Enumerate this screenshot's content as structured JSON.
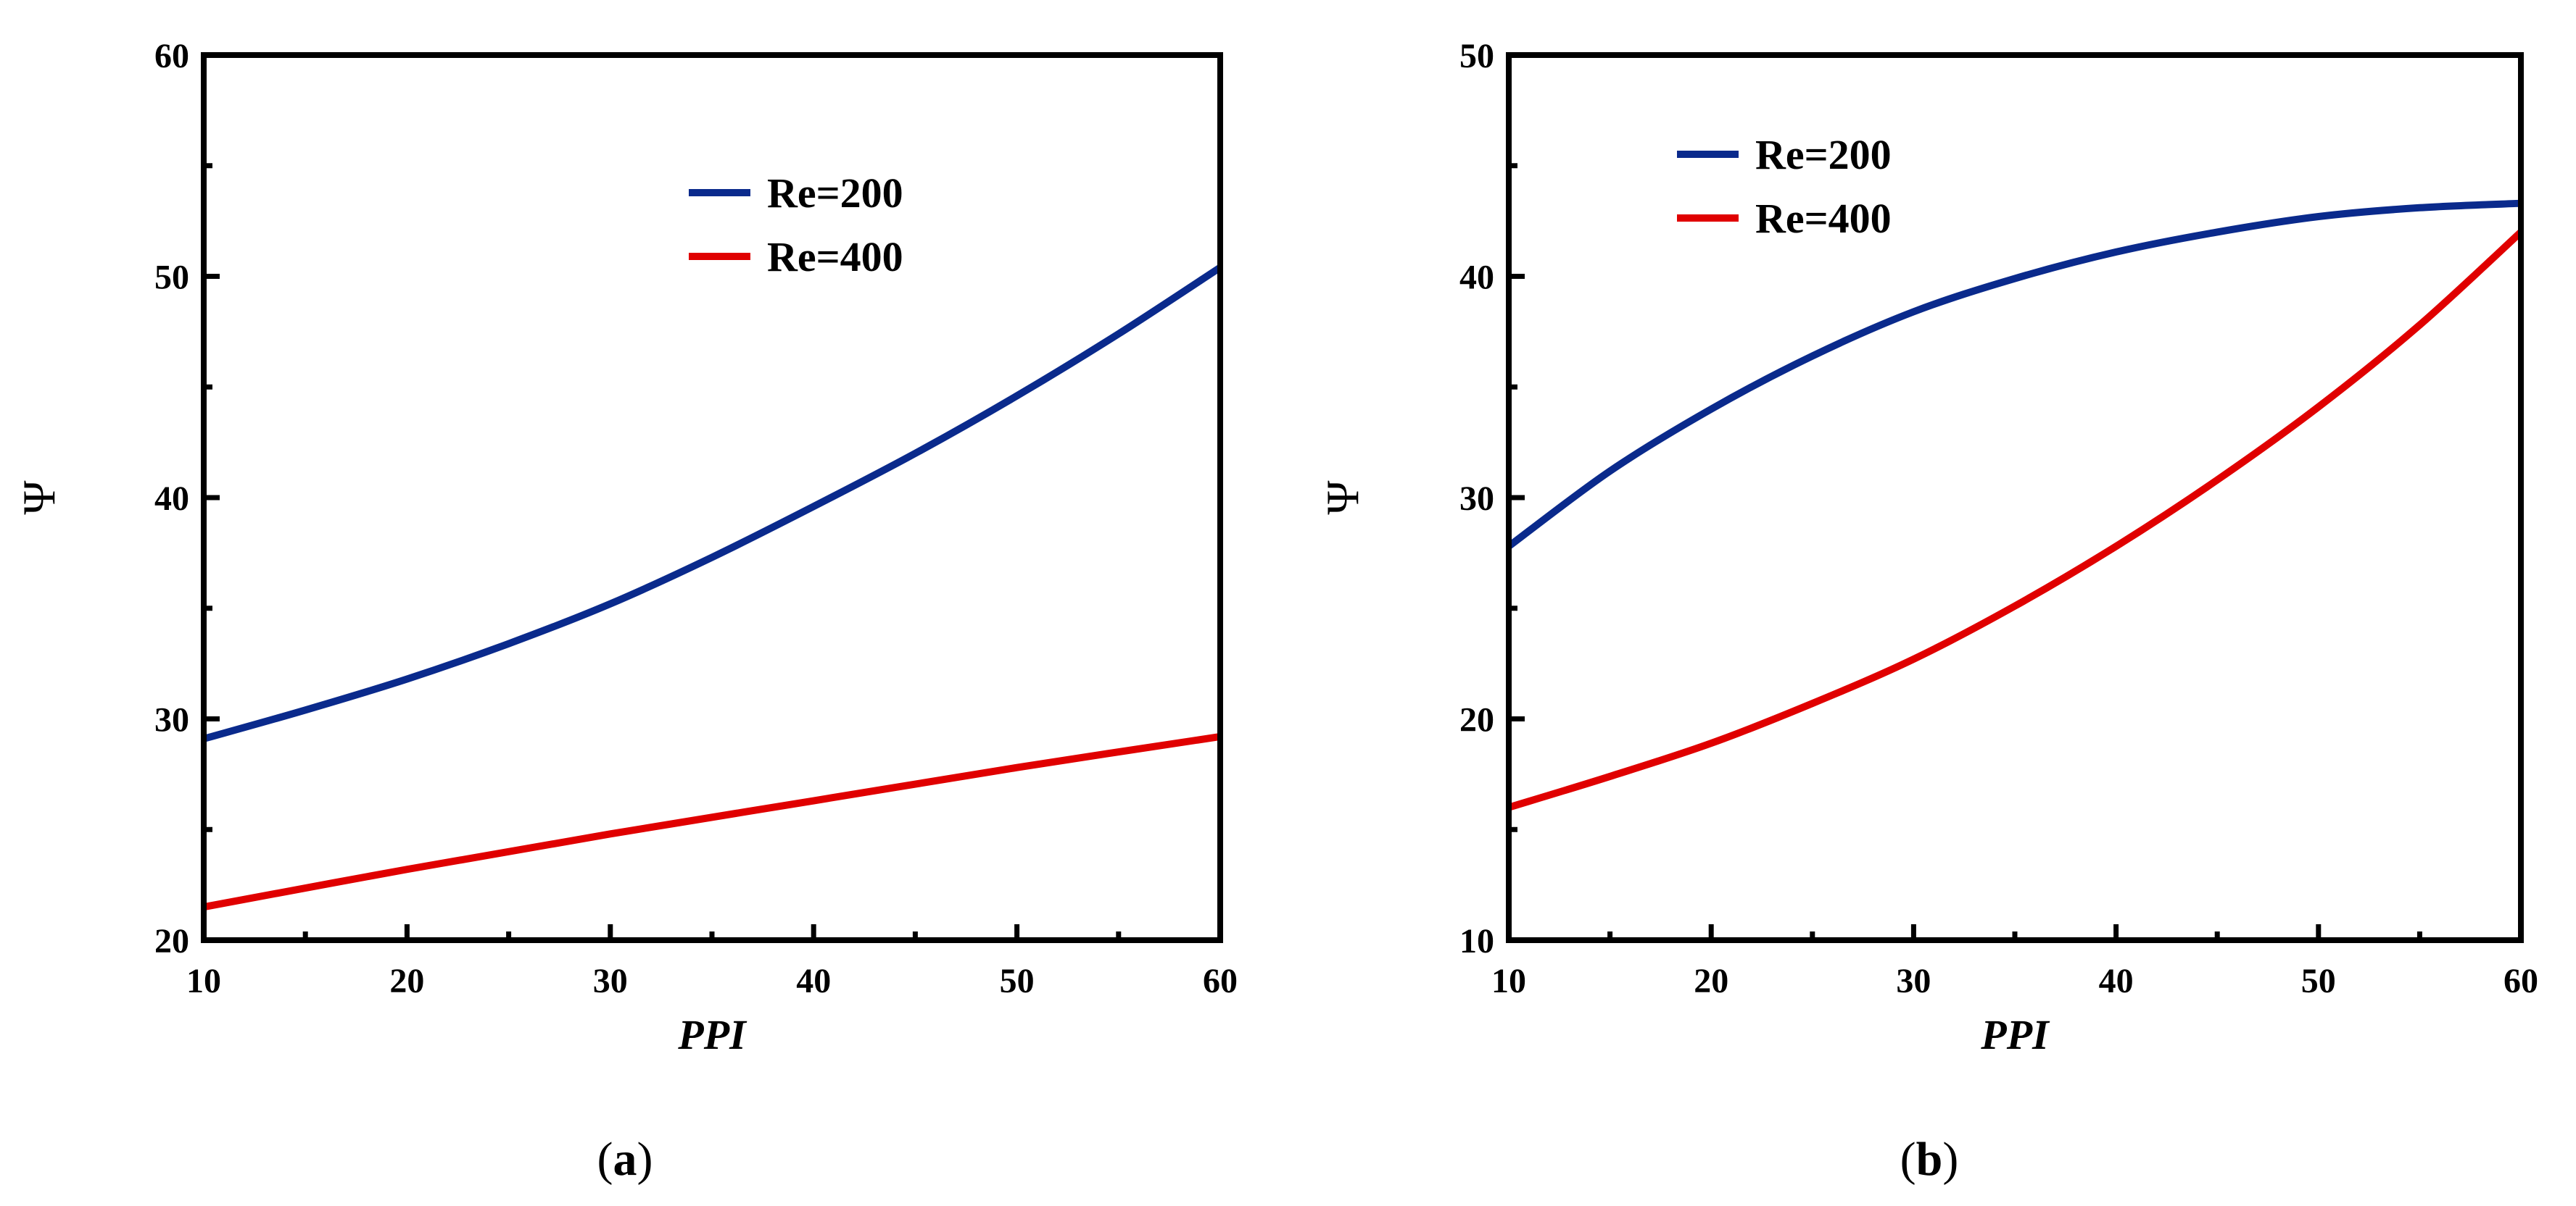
{
  "chart_data": [
    {
      "type": "line",
      "panel_label": "a",
      "xlabel": "PPI",
      "ylabel": "Ψ",
      "xlim": [
        10,
        60
      ],
      "ylim": [
        20,
        60
      ],
      "x_ticks": [
        10,
        20,
        30,
        40,
        50,
        60
      ],
      "y_ticks": [
        20,
        30,
        40,
        50,
        60
      ],
      "grid": false,
      "legend_position": "upper-center",
      "series": [
        {
          "name": "Re=200",
          "color": "#0a2a8c",
          "x": [
            10,
            15,
            20,
            25,
            30,
            35,
            40,
            45,
            50,
            55,
            60
          ],
          "y": [
            29.1,
            30.4,
            31.8,
            33.4,
            35.2,
            37.3,
            39.6,
            42.0,
            44.6,
            47.4,
            50.4
          ]
        },
        {
          "name": "Re=400",
          "color": "#e00000",
          "x": [
            10,
            20,
            30,
            40,
            50,
            60
          ],
          "y": [
            21.5,
            23.2,
            24.8,
            26.3,
            27.8,
            29.2
          ]
        }
      ]
    },
    {
      "type": "line",
      "panel_label": "b",
      "xlabel": "PPI",
      "ylabel": "Ψ",
      "xlim": [
        10,
        60
      ],
      "ylim": [
        10,
        50
      ],
      "x_ticks": [
        10,
        20,
        30,
        40,
        50,
        60
      ],
      "y_ticks": [
        10,
        20,
        30,
        40,
        50
      ],
      "grid": false,
      "legend_position": "upper-left",
      "series": [
        {
          "name": "Re=200",
          "color": "#0a2a8c",
          "x": [
            10,
            15,
            20,
            25,
            30,
            35,
            40,
            45,
            50,
            55,
            60
          ],
          "y": [
            27.8,
            31.2,
            34.0,
            36.4,
            38.4,
            39.9,
            41.1,
            42.0,
            42.7,
            43.1,
            43.3
          ]
        },
        {
          "name": "Re=400",
          "color": "#e00000",
          "x": [
            10,
            15,
            20,
            25,
            30,
            35,
            40,
            45,
            50,
            55,
            60
          ],
          "y": [
            16.0,
            17.4,
            18.9,
            20.7,
            22.7,
            25.1,
            27.8,
            30.8,
            34.1,
            37.8,
            42.0
          ]
        }
      ]
    }
  ]
}
